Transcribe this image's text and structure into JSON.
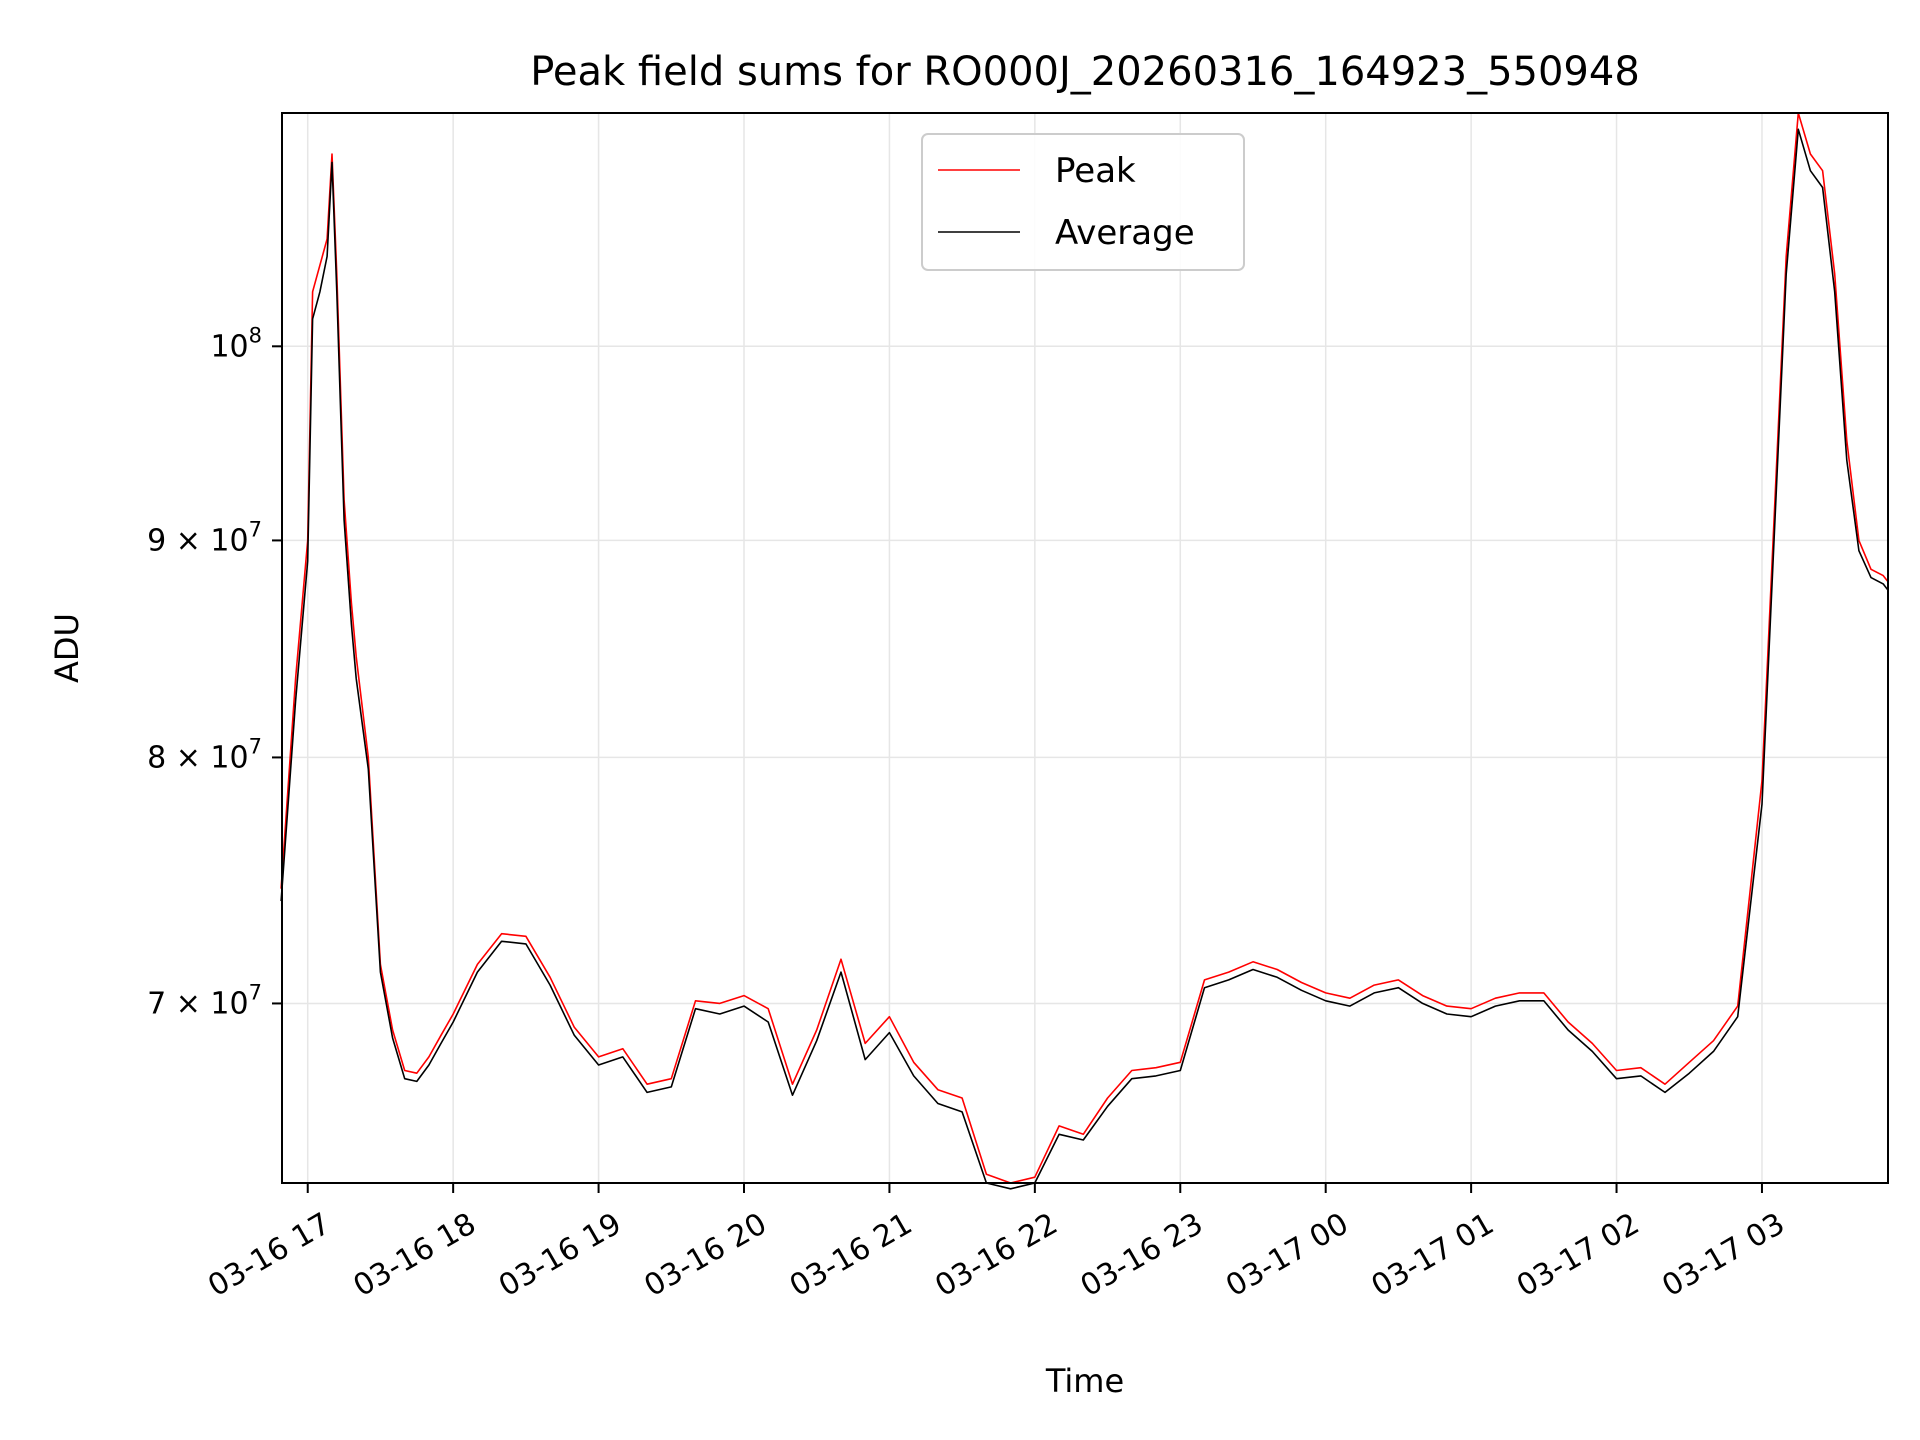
{
  "chart_data": {
    "type": "line",
    "title": "Peak field sums for RO000J_20260316_164923_550948",
    "xlabel": "Time",
    "ylabel": "ADU",
    "y_scale": "log",
    "grid": true,
    "legend_position": "top-center",
    "xlim": [
      "2026-03-16 16:49:23",
      "2026-03-17 03:52:00"
    ],
    "ylim": [
      63500000,
      113500000
    ],
    "x_ticks": [
      {
        "value": "2026-03-16 17:00",
        "label": "03-16 17"
      },
      {
        "value": "2026-03-16 18:00",
        "label": "03-16 18"
      },
      {
        "value": "2026-03-16 19:00",
        "label": "03-16 19"
      },
      {
        "value": "2026-03-16 20:00",
        "label": "03-16 20"
      },
      {
        "value": "2026-03-16 21:00",
        "label": "03-16 21"
      },
      {
        "value": "2026-03-16 22:00",
        "label": "03-16 22"
      },
      {
        "value": "2026-03-16 23:00",
        "label": "03-16 23"
      },
      {
        "value": "2026-03-17 00:00",
        "label": "03-17 00"
      },
      {
        "value": "2026-03-17 01:00",
        "label": "03-17 01"
      },
      {
        "value": "2026-03-17 02:00",
        "label": "03-17 02"
      },
      {
        "value": "2026-03-17 03:00",
        "label": "03-17 03"
      }
    ],
    "y_ticks": [
      {
        "value": 70000000,
        "label_base": "7 × 10",
        "label_exp": "7"
      },
      {
        "value": 80000000,
        "label_base": "8 × 10",
        "label_exp": "7"
      },
      {
        "value": 90000000,
        "label_base": "9 × 10",
        "label_exp": "7"
      },
      {
        "value": 100000000,
        "label_base": "10",
        "label_exp": "8"
      }
    ],
    "series": [
      {
        "name": "Peak",
        "color": "#ff0000",
        "x": [
          "2026-03-16 16:49",
          "2026-03-16 16:55",
          "2026-03-16 17:00",
          "2026-03-16 17:02",
          "2026-03-16 17:05",
          "2026-03-16 17:08",
          "2026-03-16 17:10",
          "2026-03-16 17:12",
          "2026-03-16 17:15",
          "2026-03-16 17:18",
          "2026-03-16 17:20",
          "2026-03-16 17:25",
          "2026-03-16 17:30",
          "2026-03-16 17:35",
          "2026-03-16 17:40",
          "2026-03-16 17:45",
          "2026-03-16 17:50",
          "2026-03-16 17:55",
          "2026-03-16 18:00",
          "2026-03-16 18:10",
          "2026-03-16 18:20",
          "2026-03-16 18:30",
          "2026-03-16 18:40",
          "2026-03-16 18:50",
          "2026-03-16 19:00",
          "2026-03-16 19:10",
          "2026-03-16 19:20",
          "2026-03-16 19:30",
          "2026-03-16 19:40",
          "2026-03-16 19:50",
          "2026-03-16 20:00",
          "2026-03-16 20:10",
          "2026-03-16 20:20",
          "2026-03-16 20:30",
          "2026-03-16 20:40",
          "2026-03-16 20:50",
          "2026-03-16 21:00",
          "2026-03-16 21:10",
          "2026-03-16 21:20",
          "2026-03-16 21:30",
          "2026-03-16 21:40",
          "2026-03-16 21:50",
          "2026-03-16 22:00",
          "2026-03-16 22:10",
          "2026-03-16 22:20",
          "2026-03-16 22:30",
          "2026-03-16 22:40",
          "2026-03-16 22:50",
          "2026-03-16 23:00",
          "2026-03-16 23:10",
          "2026-03-16 23:20",
          "2026-03-16 23:30",
          "2026-03-16 23:40",
          "2026-03-16 23:50",
          "2026-03-17 00:00",
          "2026-03-17 00:10",
          "2026-03-17 00:20",
          "2026-03-17 00:30",
          "2026-03-17 00:40",
          "2026-03-17 00:50",
          "2026-03-17 01:00",
          "2026-03-17 01:10",
          "2026-03-17 01:20",
          "2026-03-17 01:30",
          "2026-03-17 01:40",
          "2026-03-17 01:50",
          "2026-03-17 02:00",
          "2026-03-17 02:10",
          "2026-03-17 02:20",
          "2026-03-17 02:30",
          "2026-03-17 02:40",
          "2026-03-17 02:50",
          "2026-03-17 03:00",
          "2026-03-17 03:10",
          "2026-03-17 03:15",
          "2026-03-17 03:20",
          "2026-03-17 03:25",
          "2026-03-17 03:30",
          "2026-03-17 03:35",
          "2026-03-17 03:40",
          "2026-03-17 03:45",
          "2026-03-17 03:50",
          "2026-03-17 03:52"
        ],
        "y": [
          74500000,
          83500000,
          90000000,
          103000000,
          104500000,
          106000000,
          111000000,
          104000000,
          92000000,
          87000000,
          84500000,
          80000000,
          71500000,
          69000000,
          67500000,
          67400000,
          68000000,
          68800000,
          69600000,
          71500000,
          72700000,
          72600000,
          71000000,
          69100000,
          68000000,
          68300000,
          67000000,
          67200000,
          70100000,
          70000000,
          70300000,
          69800000,
          67000000,
          69000000,
          71700000,
          68500000,
          69500000,
          67800000,
          66800000,
          66500000,
          63800000,
          63500000,
          63700000,
          65500000,
          65200000,
          66500000,
          67500000,
          67600000,
          67800000,
          70900000,
          71200000,
          71600000,
          71300000,
          70800000,
          70400000,
          70200000,
          70700000,
          70900000,
          70300000,
          69900000,
          69800000,
          70200000,
          70400000,
          70400000,
          69300000,
          68500000,
          67500000,
          67600000,
          67000000,
          67800000,
          68600000,
          69900000,
          79000000,
          105000000,
          113500000,
          111000000,
          110000000,
          104000000,
          95000000,
          90000000,
          88600000,
          88300000,
          88000000
        ]
      },
      {
        "name": "Average",
        "color": "#000000",
        "x": [
          "2026-03-16 16:49",
          "2026-03-16 16:55",
          "2026-03-16 17:00",
          "2026-03-16 17:02",
          "2026-03-16 17:05",
          "2026-03-16 17:08",
          "2026-03-16 17:10",
          "2026-03-16 17:12",
          "2026-03-16 17:15",
          "2026-03-16 17:18",
          "2026-03-16 17:20",
          "2026-03-16 17:25",
          "2026-03-16 17:30",
          "2026-03-16 17:35",
          "2026-03-16 17:40",
          "2026-03-16 17:45",
          "2026-03-16 17:50",
          "2026-03-16 17:55",
          "2026-03-16 18:00",
          "2026-03-16 18:10",
          "2026-03-16 18:20",
          "2026-03-16 18:30",
          "2026-03-16 18:40",
          "2026-03-16 18:50",
          "2026-03-16 19:00",
          "2026-03-16 19:10",
          "2026-03-16 19:20",
          "2026-03-16 19:30",
          "2026-03-16 19:40",
          "2026-03-16 19:50",
          "2026-03-16 20:00",
          "2026-03-16 20:10",
          "2026-03-16 20:20",
          "2026-03-16 20:30",
          "2026-03-16 20:40",
          "2026-03-16 20:50",
          "2026-03-16 21:00",
          "2026-03-16 21:10",
          "2026-03-16 21:20",
          "2026-03-16 21:30",
          "2026-03-16 21:40",
          "2026-03-16 21:50",
          "2026-03-16 22:00",
          "2026-03-16 22:10",
          "2026-03-16 22:20",
          "2026-03-16 22:30",
          "2026-03-16 22:40",
          "2026-03-16 22:50",
          "2026-03-16 23:00",
          "2026-03-16 23:10",
          "2026-03-16 23:20",
          "2026-03-16 23:30",
          "2026-03-16 23:40",
          "2026-03-16 23:50",
          "2026-03-17 00:00",
          "2026-03-17 00:10",
          "2026-03-17 00:20",
          "2026-03-17 00:30",
          "2026-03-17 00:40",
          "2026-03-17 00:50",
          "2026-03-17 01:00",
          "2026-03-17 01:10",
          "2026-03-17 01:20",
          "2026-03-17 01:30",
          "2026-03-17 01:40",
          "2026-03-17 01:50",
          "2026-03-17 02:00",
          "2026-03-17 02:10",
          "2026-03-17 02:20",
          "2026-03-17 02:30",
          "2026-03-17 02:40",
          "2026-03-17 02:50",
          "2026-03-17 03:00",
          "2026-03-17 03:10",
          "2026-03-17 03:15",
          "2026-03-17 03:20",
          "2026-03-17 03:25",
          "2026-03-17 03:30",
          "2026-03-17 03:35",
          "2026-03-17 03:40",
          "2026-03-17 03:45",
          "2026-03-17 03:50",
          "2026-03-17 03:52"
        ],
        "y": [
          74000000,
          82500000,
          89000000,
          101500000,
          103000000,
          105000000,
          110500000,
          103000000,
          91000000,
          86000000,
          83500000,
          79500000,
          71200000,
          68700000,
          67200000,
          67100000,
          67700000,
          68500000,
          69300000,
          71200000,
          72400000,
          72300000,
          70700000,
          68800000,
          67700000,
          68000000,
          66700000,
          66900000,
          69800000,
          69600000,
          69900000,
          69300000,
          66600000,
          68600000,
          71200000,
          67900000,
          68900000,
          67300000,
          66300000,
          66000000,
          63500000,
          63300000,
          63500000,
          65200000,
          65000000,
          66200000,
          67200000,
          67300000,
          67500000,
          70600000,
          70900000,
          71300000,
          71000000,
          70500000,
          70100000,
          69900000,
          70400000,
          70600000,
          70000000,
          69600000,
          69500000,
          69900000,
          70100000,
          70100000,
          69000000,
          68200000,
          67200000,
          67300000,
          66700000,
          67400000,
          68200000,
          69500000,
          78000000,
          104000000,
          112500000,
          110000000,
          109000000,
          103000000,
          94000000,
          89500000,
          88200000,
          87900000,
          87600000
        ]
      }
    ],
    "legend": [
      {
        "label": "Peak",
        "color": "#ff0000"
      },
      {
        "label": "Average",
        "color": "#000000"
      }
    ]
  }
}
